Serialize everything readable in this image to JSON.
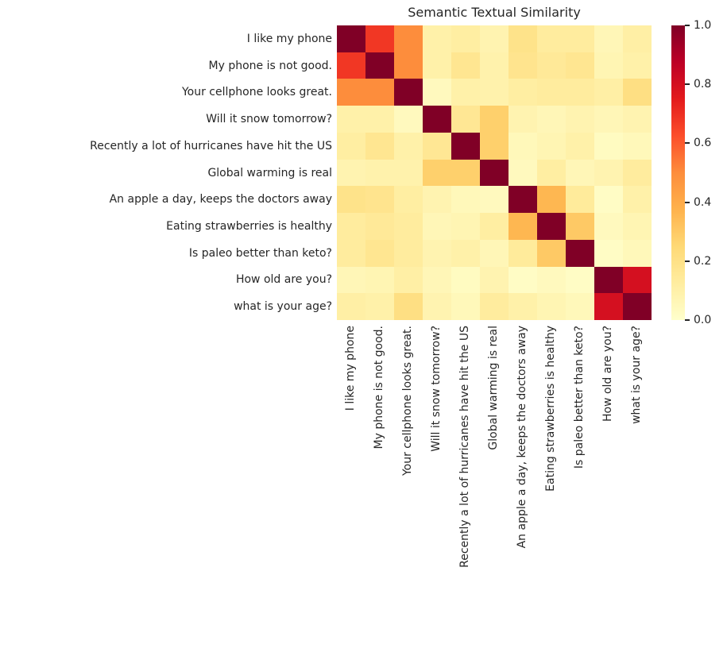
{
  "chart_data": {
    "type": "heatmap",
    "title": "Semantic Textual Similarity",
    "row_labels": [
      "I like my phone",
      "My phone is not good.",
      "Your cellphone looks great.",
      "Will it snow tomorrow?",
      "Recently a lot of hurricanes have hit the US",
      "Global warming is real",
      "An apple a day, keeps the doctors away",
      "Eating strawberries is healthy",
      "Is paleo better than keto?",
      "How old are you?",
      "what is your age?"
    ],
    "col_labels": [
      "I like my phone",
      "My phone is not good.",
      "Your cellphone looks great.",
      "Will it snow tomorrow?",
      "Recently a lot of hurricanes have hit the US",
      "Global warming is real",
      "An apple a day, keeps the doctors away",
      "Eating strawberries is healthy",
      "Is paleo better than keto?",
      "How old are you?",
      "what is your age?"
    ],
    "matrix": [
      [
        1.0,
        0.68,
        0.5,
        0.1,
        0.12,
        0.08,
        0.19,
        0.13,
        0.13,
        0.06,
        0.11
      ],
      [
        0.68,
        1.0,
        0.5,
        0.1,
        0.17,
        0.09,
        0.18,
        0.15,
        0.17,
        0.07,
        0.1
      ],
      [
        0.5,
        0.5,
        1.0,
        0.04,
        0.1,
        0.09,
        0.12,
        0.13,
        0.13,
        0.11,
        0.21
      ],
      [
        0.1,
        0.1,
        0.04,
        1.0,
        0.16,
        0.28,
        0.08,
        0.06,
        0.08,
        0.06,
        0.08
      ],
      [
        0.12,
        0.17,
        0.1,
        0.16,
        1.0,
        0.28,
        0.05,
        0.07,
        0.1,
        0.03,
        0.05
      ],
      [
        0.08,
        0.09,
        0.09,
        0.28,
        0.28,
        1.0,
        0.04,
        0.12,
        0.06,
        0.08,
        0.13
      ],
      [
        0.19,
        0.18,
        0.12,
        0.08,
        0.05,
        0.04,
        1.0,
        0.36,
        0.14,
        0.02,
        0.1
      ],
      [
        0.13,
        0.15,
        0.13,
        0.06,
        0.07,
        0.12,
        0.36,
        1.0,
        0.3,
        0.04,
        0.07
      ],
      [
        0.13,
        0.17,
        0.13,
        0.08,
        0.1,
        0.06,
        0.14,
        0.3,
        1.0,
        0.02,
        0.05
      ],
      [
        0.06,
        0.07,
        0.11,
        0.06,
        0.03,
        0.08,
        0.02,
        0.04,
        0.02,
        1.0,
        0.8
      ],
      [
        0.11,
        0.1,
        0.21,
        0.08,
        0.05,
        0.13,
        0.1,
        0.07,
        0.05,
        0.8,
        1.0
      ]
    ],
    "value_range": [
      0.0,
      1.0
    ],
    "x_tick_rotation": 90,
    "grid": false,
    "legend_position": "colorbar-right",
    "text_color": "#262626",
    "background_color": "#ffffff",
    "colormap": {
      "name": "YlOrRd",
      "stops": [
        {
          "pos": 0.0,
          "color": "#ffffcc"
        },
        {
          "pos": 0.125,
          "color": "#ffeda0"
        },
        {
          "pos": 0.25,
          "color": "#fed976"
        },
        {
          "pos": 0.375,
          "color": "#feb24c"
        },
        {
          "pos": 0.5,
          "color": "#fd8d3c"
        },
        {
          "pos": 0.625,
          "color": "#fc4e2a"
        },
        {
          "pos": 0.75,
          "color": "#e31a1c"
        },
        {
          "pos": 0.875,
          "color": "#bd0026"
        },
        {
          "pos": 1.0,
          "color": "#800026"
        }
      ]
    },
    "colorbar": {
      "ticks": [
        {
          "value": 1.0,
          "label": "1.0"
        },
        {
          "value": 0.8,
          "label": "0.8"
        },
        {
          "value": 0.6,
          "label": "0.6"
        },
        {
          "value": 0.4,
          "label": "0.4"
        },
        {
          "value": 0.2,
          "label": "0.2"
        },
        {
          "value": 0.0,
          "label": "0.0"
        }
      ]
    }
  }
}
